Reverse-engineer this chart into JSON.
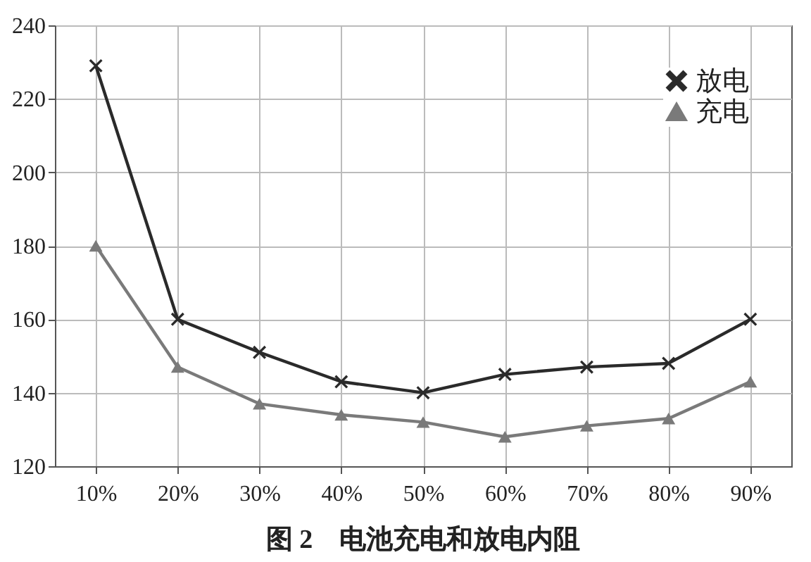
{
  "chart_data": {
    "type": "line",
    "title": "图 2　电池充电和放电内阻",
    "categories": [
      "10%",
      "20%",
      "30%",
      "40%",
      "50%",
      "60%",
      "70%",
      "80%",
      "90%"
    ],
    "series": [
      {
        "name": "放电",
        "color": "#2a2a2a",
        "marker": "cross",
        "values": [
          229,
          160,
          151,
          143,
          140,
          145,
          147,
          148,
          160
        ]
      },
      {
        "name": "充电",
        "color": "#7a7a7a",
        "marker": "triangle",
        "values": [
          180,
          147,
          137,
          134,
          132,
          128,
          131,
          133,
          143
        ]
      }
    ],
    "ylim": [
      120,
      240
    ],
    "yticks": [
      120,
      140,
      160,
      180,
      200,
      220,
      240
    ],
    "grid": true,
    "legend": "top right",
    "line_style": "solid"
  }
}
